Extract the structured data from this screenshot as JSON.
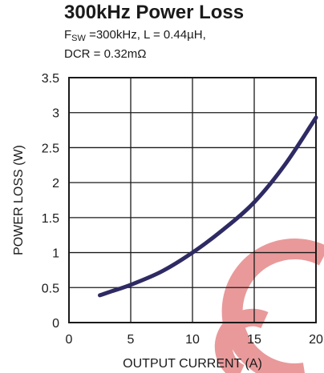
{
  "chart_data": {
    "type": "line",
    "title": "300kHz Power Loss",
    "subtitle": {
      "fsw_symbol": "F",
      "fsw_subscript": "SW",
      "line1_rest": " =300kHz, L = 0.44µH,",
      "line2": "DCR = 0.32mΩ"
    },
    "xlabel": "OUTPUT CURRENT (A)",
    "ylabel": "POWER LOSS (W)",
    "xlim": [
      0,
      20
    ],
    "ylim": [
      0,
      3.5
    ],
    "xticks": [
      "0",
      "5",
      "10",
      "15",
      "20"
    ],
    "yticks": [
      "0",
      "0.5",
      "1",
      "1.5",
      "2",
      "2.5",
      "3",
      "3.5"
    ],
    "grid": true,
    "series": [
      {
        "color": "#2e2a63",
        "x": [
          2.5,
          3.5,
          5,
          7.5,
          10,
          12.5,
          15,
          17.5,
          20
        ],
        "y": [
          0.39,
          0.45,
          0.54,
          0.73,
          1.0,
          1.33,
          1.72,
          2.26,
          2.93
        ]
      }
    ]
  },
  "watermark_color": "#e9999a"
}
